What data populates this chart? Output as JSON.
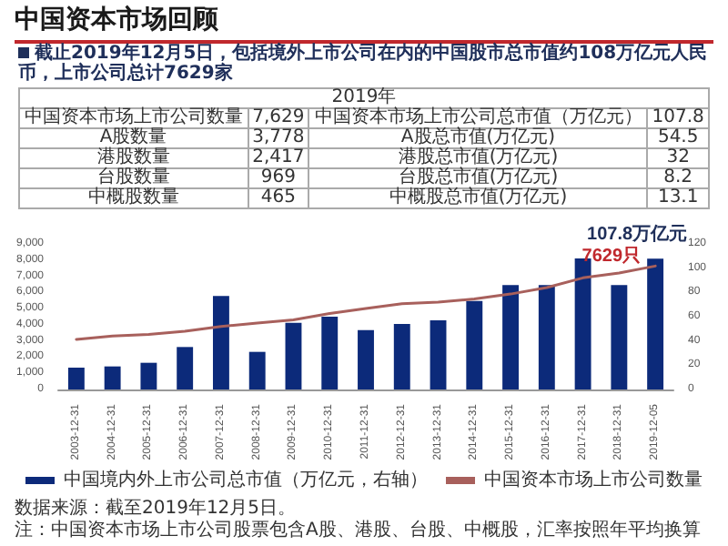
{
  "chart_data": [
    {
      "type": "bar",
      "title": "中国资本市场回顾",
      "subtitle": "截止2019年12月5日，包括境外上市公司在内的中国股市总市值约108万亿元人民币，上市公司总计7629家",
      "categories": [
        "2003-12-31",
        "2004-12-31",
        "2005-12-31",
        "2006-12-31",
        "2007-12-31",
        "2008-12-31",
        "2009-12-31",
        "2010-12-31",
        "2011-12-31",
        "2012-12-31",
        "2013-12-31",
        "2014-12-31",
        "2015-12-31",
        "2016-12-31",
        "2017-12-31",
        "2018-12-31",
        "2019-12-05"
      ],
      "series": [
        {
          "name": "中国境内外上市公司总市值（万亿元，右轴）",
          "type": "bar",
          "axis": "y2",
          "color": "#0c2a7a",
          "values": [
            18,
            19,
            22,
            35,
            77,
            31,
            55,
            60,
            49,
            54,
            57,
            73,
            86,
            86,
            108,
            86,
            107.8
          ],
          "value_labels": [
            null,
            null,
            null,
            null,
            null,
            null,
            null,
            null,
            null,
            null,
            null,
            null,
            null,
            null,
            null,
            null,
            "107.8万亿元"
          ]
        },
        {
          "name": "中国资本市场上市公司数量",
          "type": "line",
          "color": "#a8605c",
          "values": [
            3100,
            3300,
            3400,
            3600,
            3900,
            4100,
            4300,
            4700,
            5000,
            5300,
            5400,
            5600,
            5900,
            6300,
            6900,
            7200,
            7629
          ],
          "value_labels": [
            null,
            null,
            null,
            null,
            null,
            null,
            null,
            null,
            null,
            null,
            null,
            null,
            null,
            null,
            null,
            null,
            "7629只"
          ]
        }
      ],
      "ylim": [
        0,
        9000
      ],
      "yticks": [
        0,
        {
          "value": 1000,
          "label": "1,000"
        },
        {
          "value": 2000,
          "label": "2,000"
        },
        {
          "value": 3000,
          "label": "3,000"
        },
        {
          "value": 4000,
          "label": "4,000"
        },
        {
          "value": 5000,
          "label": "5,000"
        },
        {
          "value": 6000,
          "label": "6,000"
        },
        {
          "value": 7000,
          "label": "7,000"
        },
        {
          "value": 8000,
          "label": "8,000"
        },
        {
          "value": 9000,
          "label": "9,000"
        }
      ],
      "y2lim": [
        0,
        120
      ],
      "y2ticks": [
        0,
        20,
        40,
        60,
        80,
        100,
        120
      ],
      "grid": false,
      "legend": "bottom",
      "marker": "none",
      "line_style": "solid",
      "annotations": [
        "数据来源：截至2019年12月5日。",
        "注：中国资本市场上市公司股票包含A股、港股、台股、中概股，汇率按照年平均换算"
      ]
    },
    {
      "type": "other",
      "title": "2019年",
      "annotations": [
        "中国资本市场上市公司数量",
        "7,629",
        "中国资本市场上市公司总市值（万亿元）",
        "107.8",
        "A股数量",
        "3,778",
        "A股总市值(万亿元)",
        "54.5",
        "港股数量",
        "2,417",
        "港股总市值(万亿元)",
        "32",
        "台股数量",
        "969",
        "台股总市值(万亿元)",
        "8.2",
        "中概股数量",
        "465",
        "中概股总市值(万亿元)",
        "13.1"
      ]
    }
  ]
}
